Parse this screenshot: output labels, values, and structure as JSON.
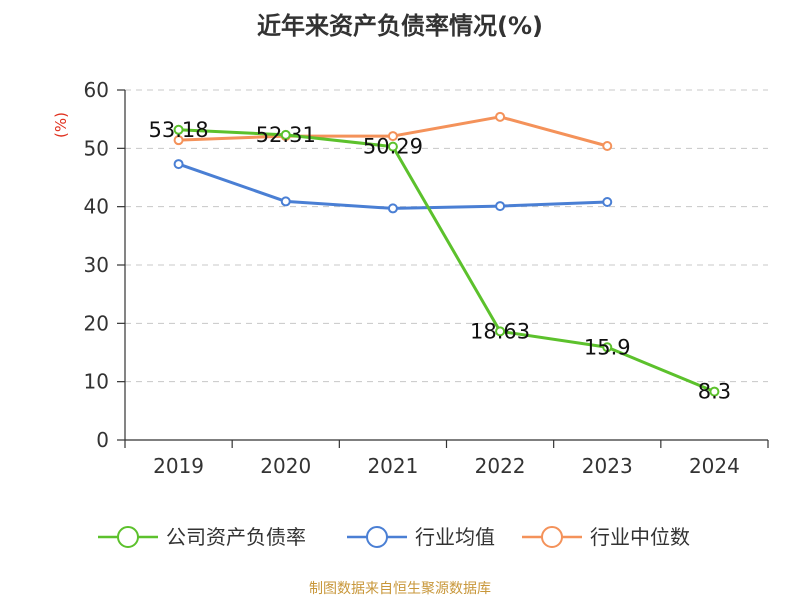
{
  "title": "近年来资产负债率情况(%)",
  "source": "制图数据来自恒生聚源数据库",
  "chart_data": {
    "type": "line",
    "unit_label": "(%)",
    "categories": [
      "2019",
      "2020",
      "2021",
      "2022",
      "2023",
      "2024"
    ],
    "ylim": [
      0,
      60
    ],
    "yticks": [
      0,
      10,
      20,
      30,
      40,
      50,
      60
    ],
    "grid": true,
    "legend_position": "bottom",
    "series": [
      {
        "name": "公司资产负债率",
        "color": "#5cc12c",
        "values": [
          53.18,
          52.31,
          50.29,
          18.63,
          15.9,
          8.3
        ],
        "labels": [
          "53.18",
          "52.31",
          "50.29",
          "18.63",
          "15.9",
          "8.3"
        ]
      },
      {
        "name": "行业均值",
        "color": "#4a7fd4",
        "values": [
          47.3,
          40.9,
          39.7,
          40.1,
          40.8,
          null
        ]
      },
      {
        "name": "行业中位数",
        "color": "#f4925a",
        "values": [
          51.4,
          52.1,
          52.1,
          55.4,
          50.4,
          null
        ]
      }
    ]
  }
}
